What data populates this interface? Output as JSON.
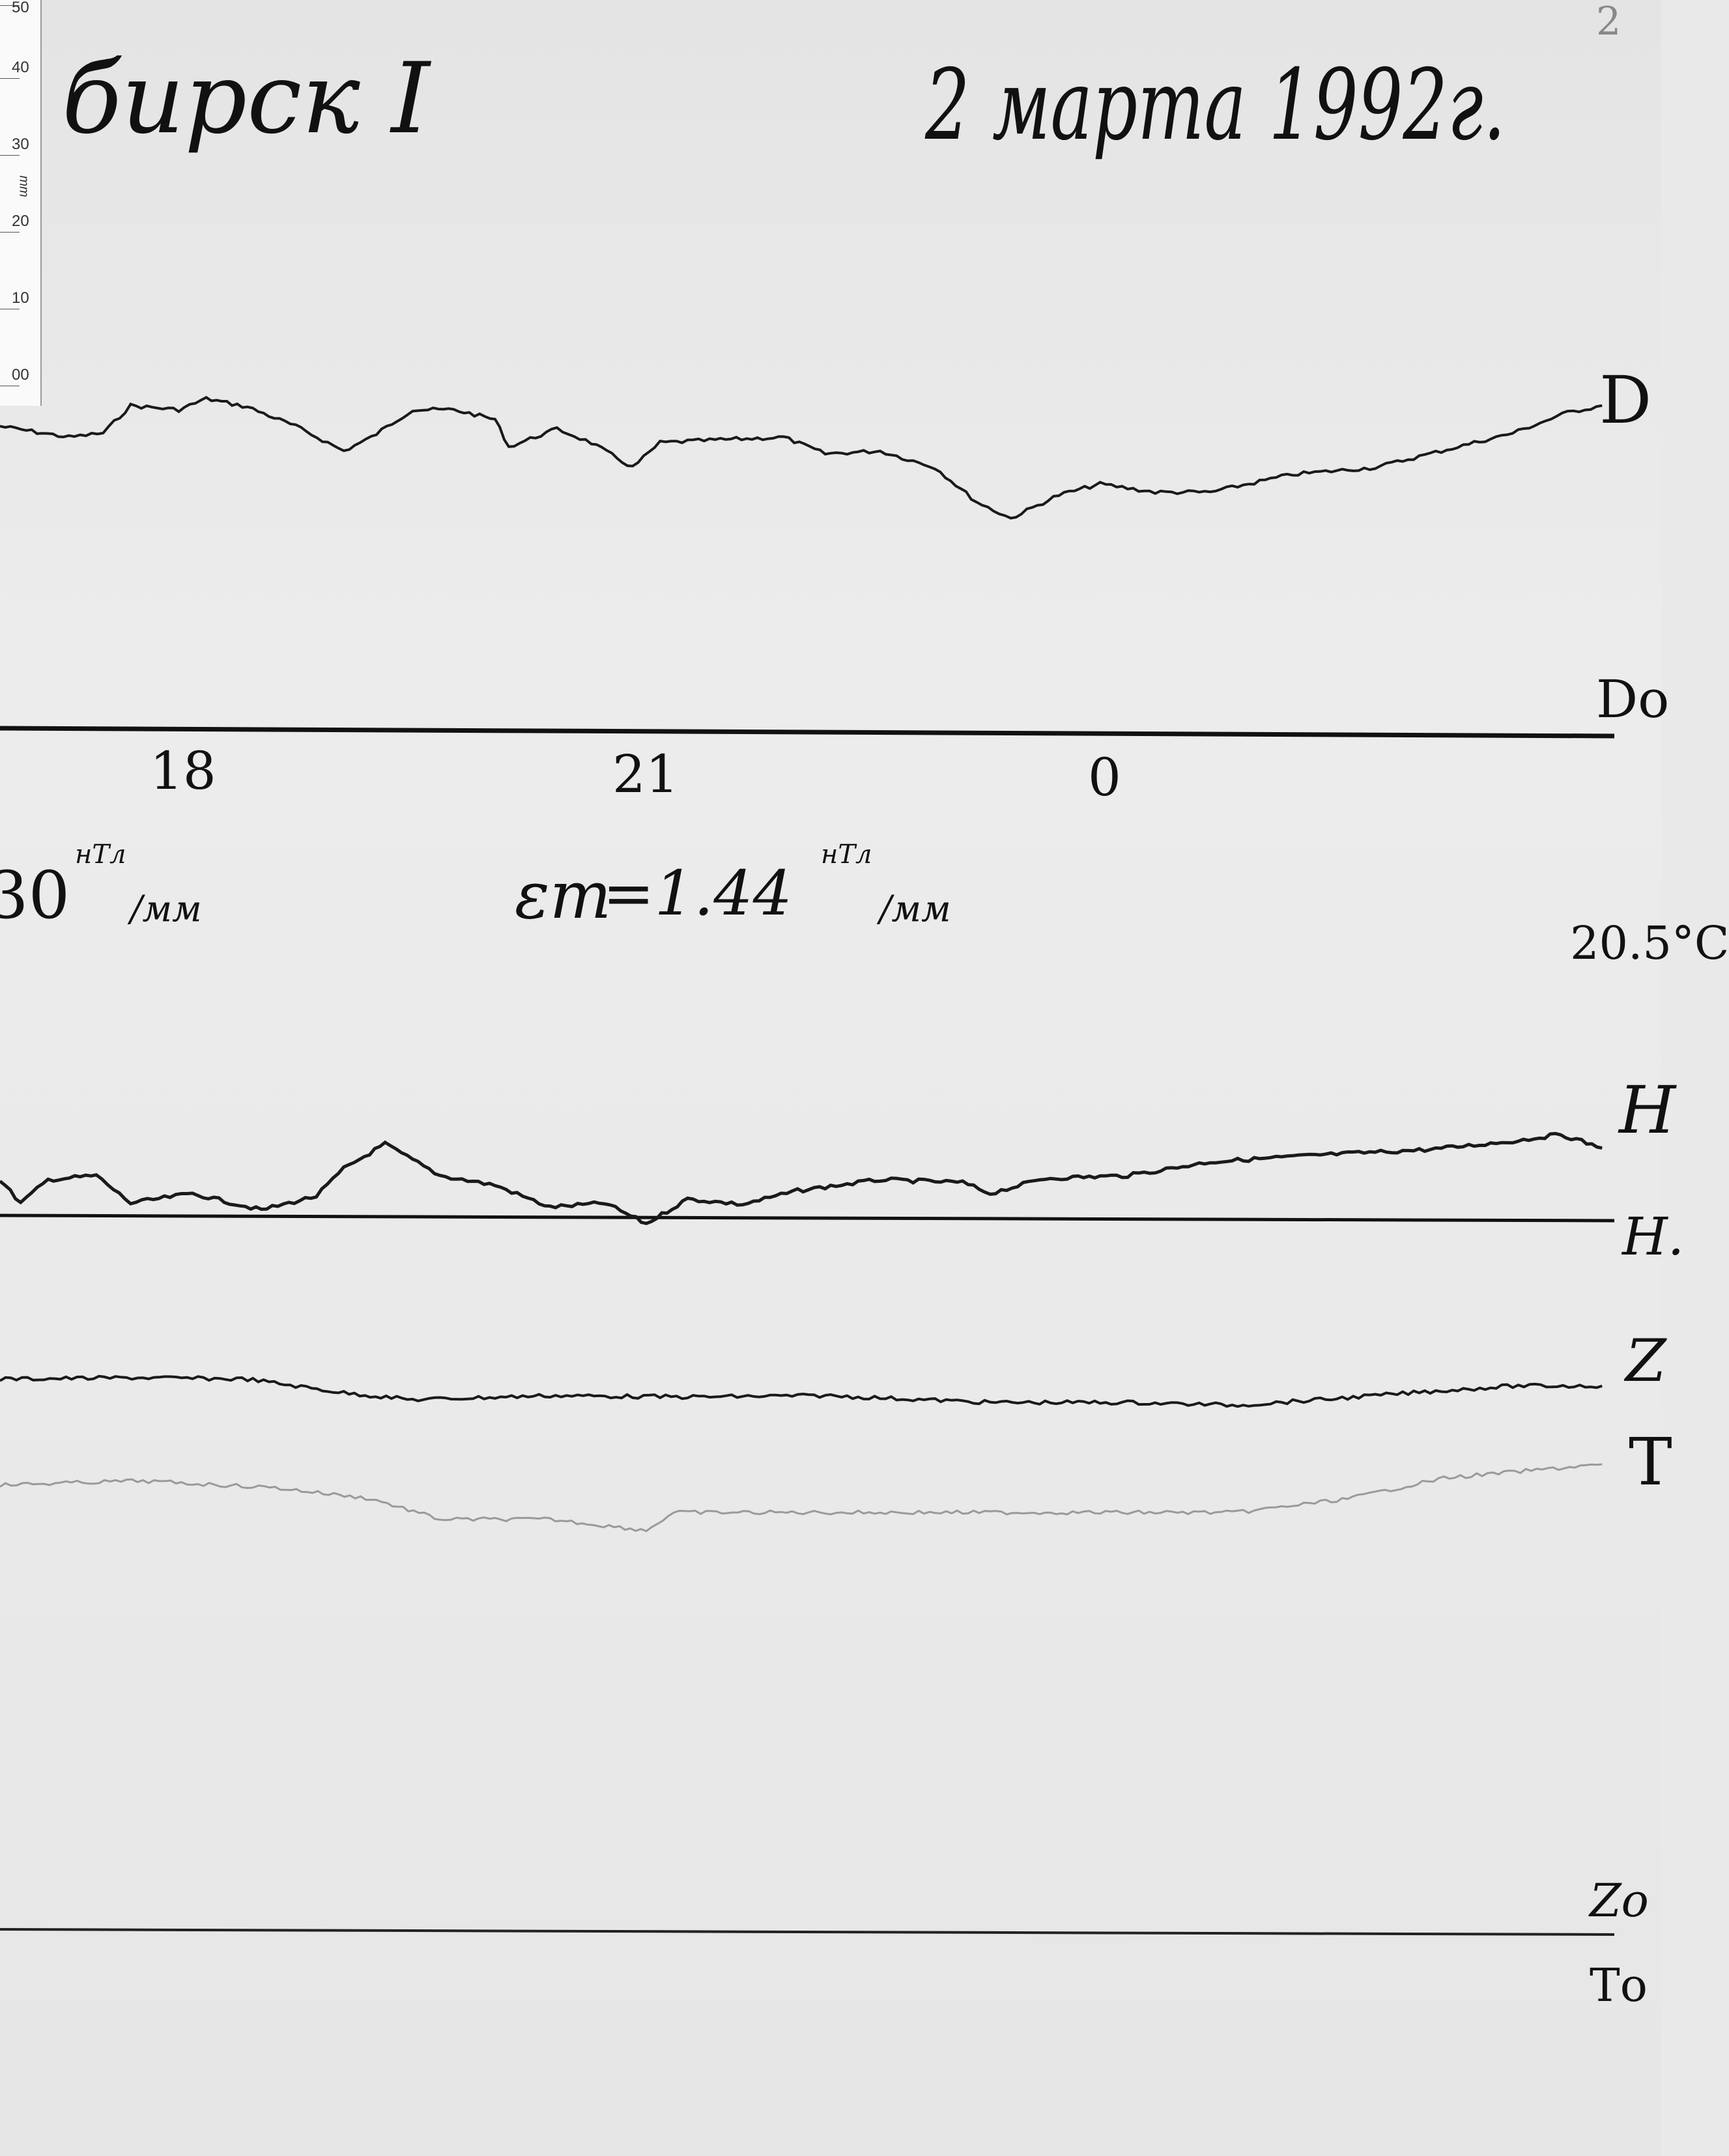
{
  "header": {
    "station": "бирск I",
    "date": "2 марта 1992г.",
    "page_number": "2"
  },
  "ruler": {
    "ticks": [
      "50",
      "40",
      "30",
      "20",
      "10",
      "00"
    ],
    "unit": "mm"
  },
  "traces": {
    "D": "D",
    "D0": "Dо",
    "H": "H",
    "H0": "H.",
    "Z": "Z",
    "T": "T",
    "Z0": "Zо",
    "T0": "Tо"
  },
  "hours": [
    "18",
    "21",
    "0"
  ],
  "scales": {
    "left": "30",
    "left_unit_top": "нТл",
    "left_unit_bottom": "/мм",
    "eps_symbol": "εт",
    "eps_value": "=1.44",
    "eps_unit_top": "нТл",
    "eps_unit_bottom": "/мм"
  },
  "temperature": "20.5°C",
  "colors": {
    "trace": "#1a1a1a",
    "temperature_trace": "#9a9a9a",
    "paper": "#eaeaea"
  }
}
